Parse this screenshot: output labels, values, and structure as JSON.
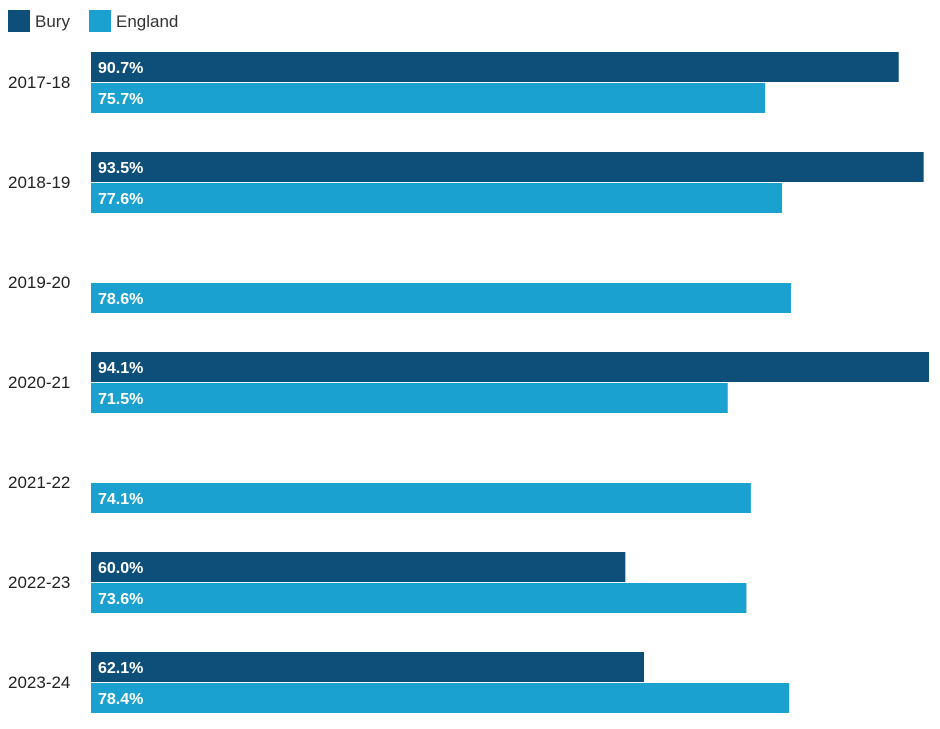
{
  "chart_data": {
    "type": "bar",
    "orientation": "horizontal",
    "categories": [
      "2017-18",
      "2018-19",
      "2019-20",
      "2020-21",
      "2021-22",
      "2022-23",
      "2023-24"
    ],
    "series": [
      {
        "name": "Bury",
        "color": "#0d4f78",
        "values": [
          90.7,
          93.5,
          null,
          94.1,
          null,
          60.0,
          62.1
        ],
        "labels": [
          "90.7%",
          "93.5%",
          "",
          "94.1%",
          "",
          "60.0%",
          "62.1%"
        ]
      },
      {
        "name": "England",
        "color": "#1aa1d0",
        "values": [
          75.7,
          77.6,
          78.6,
          71.5,
          74.1,
          73.6,
          78.4
        ],
        "labels": [
          "75.7%",
          "77.6%",
          "78.6%",
          "71.5%",
          "74.1%",
          "73.6%",
          "78.4%"
        ]
      }
    ],
    "xlim": [
      0,
      94.1
    ],
    "grid": false,
    "legend_position": "top-left"
  }
}
